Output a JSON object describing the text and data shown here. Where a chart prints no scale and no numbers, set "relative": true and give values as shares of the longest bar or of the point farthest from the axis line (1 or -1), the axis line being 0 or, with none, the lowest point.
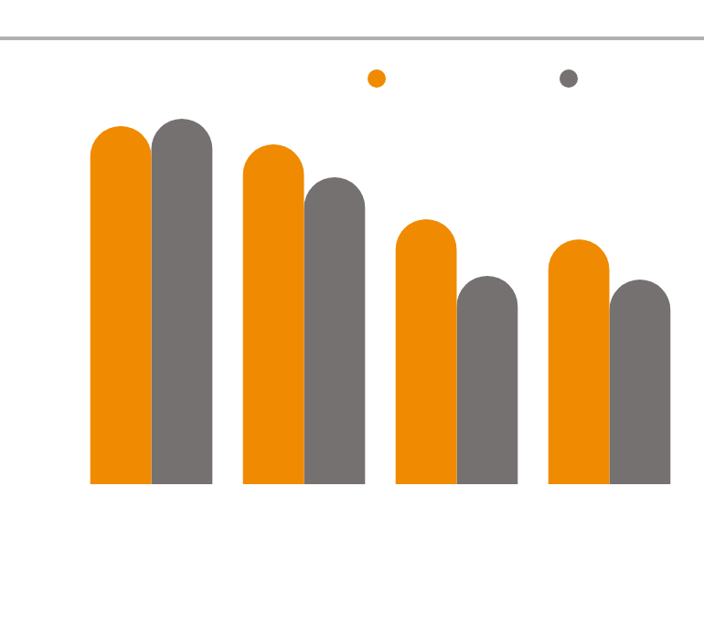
{
  "chart_data": {
    "type": "bar",
    "relative": true,
    "categories": [
      null,
      null,
      null,
      null
    ],
    "series": [
      {
        "color": "#f08a00",
        "values": [
          0.98,
          0.93,
          0.725,
          0.67
        ]
      },
      {
        "color": "#767171",
        "values": [
          1,
          0.84,
          0.57,
          0.56
        ]
      }
    ]
  }
}
